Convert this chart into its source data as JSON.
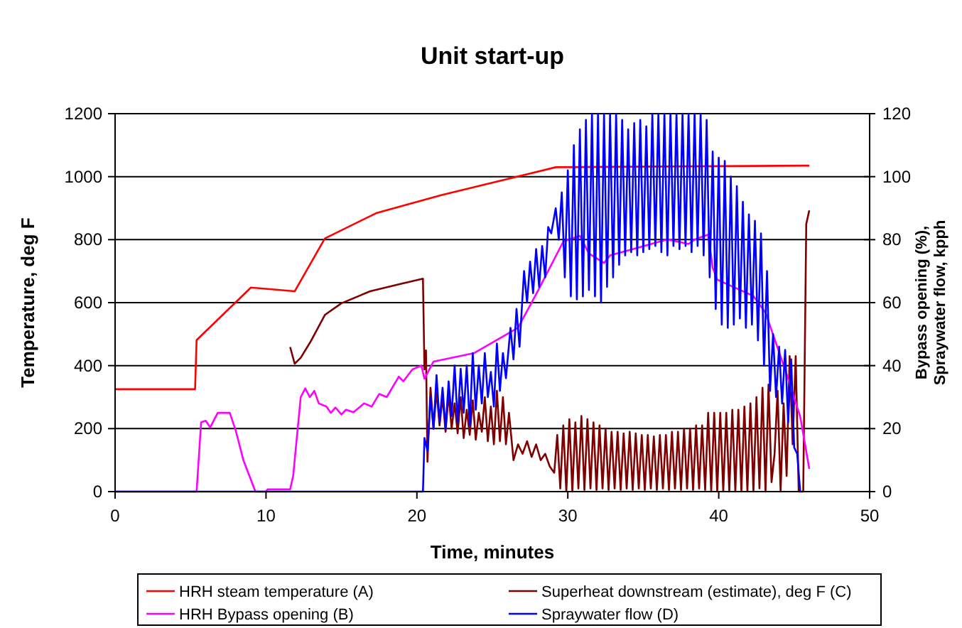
{
  "chart_data": {
    "type": "line",
    "title": "Unit start-up",
    "xlabel": "Time, minutes",
    "ylabel": "Temperature, deg F",
    "y2label": "Bypass opening (%),\nSpraywater flow, kpph",
    "xlim": [
      0,
      50
    ],
    "xticks": [
      0,
      10,
      20,
      30,
      40,
      50
    ],
    "ylim": [
      0,
      1200
    ],
    "yticks": [
      0,
      200,
      400,
      600,
      800,
      1000,
      1200
    ],
    "y2lim": [
      0,
      120
    ],
    "y2ticks": [
      0,
      20,
      40,
      60,
      80,
      100,
      120
    ],
    "grid": "y",
    "legend": "bottom",
    "marker": "none",
    "line_style": "solid",
    "series": [
      {
        "name": "HRH steam temperature (A)",
        "color": "#ff0000",
        "x": [
          0,
          5.3,
          5.4,
          9.0,
          11.9,
          13.9,
          17.3,
          21.6,
          29.2,
          46.0
        ],
        "values": [
          325,
          325,
          481,
          648,
          636,
          804,
          884,
          941,
          1030,
          1035
        ]
      },
      {
        "name": "Superheat downstream (estimate), deg F (C)",
        "color": "#800000",
        "x": [
          11.6,
          11.9,
          12.3,
          13.0,
          13.9,
          15.0,
          16.9,
          18.8,
          20.4,
          20.5,
          20.6,
          20.7,
          20.9,
          21.1,
          21.3,
          21.5,
          21.7,
          21.9,
          22.1,
          22.3,
          22.5,
          22.7,
          22.9,
          23.1,
          23.3,
          23.5,
          23.7,
          23.9,
          24.1,
          24.3,
          24.5,
          24.7,
          24.9,
          25.1,
          25.3,
          25.5,
          25.7,
          25.9,
          26.1,
          26.4,
          26.7,
          27.0,
          27.3,
          27.6,
          27.9,
          28.2,
          28.5,
          28.8,
          29.1,
          29.3,
          29.5,
          29.7,
          29.9,
          30.1,
          30.3,
          30.5,
          30.7,
          30.9,
          31.1,
          31.3,
          31.5,
          31.7,
          31.9,
          32.1,
          32.3,
          32.5,
          32.7,
          32.9,
          33.1,
          33.3,
          33.5,
          33.7,
          33.9,
          34.1,
          34.3,
          34.5,
          34.7,
          34.9,
          35.1,
          35.3,
          35.5,
          35.7,
          35.9,
          36.1,
          36.3,
          36.5,
          36.7,
          36.9,
          37.1,
          37.3,
          37.5,
          37.7,
          37.9,
          38.1,
          38.3,
          38.5,
          38.7,
          38.9,
          39.1,
          39.3,
          39.5,
          39.7,
          39.9,
          40.1,
          40.3,
          40.5,
          40.7,
          40.9,
          41.1,
          41.3,
          41.5,
          41.7,
          41.9,
          42.1,
          42.3,
          42.5,
          42.7,
          42.9,
          43.1,
          43.3,
          43.5,
          43.7,
          43.9,
          44.1,
          44.3,
          44.5,
          44.7,
          44.9,
          45.1,
          45.3,
          45.6,
          45.8,
          46.0
        ],
        "values": [
          459,
          406,
          425,
          480,
          561,
          598,
          636,
          658,
          676,
          388,
          448,
          95,
          330,
          200,
          320,
          210,
          300,
          190,
          310,
          200,
          280,
          185,
          300,
          170,
          260,
          180,
          290,
          165,
          250,
          190,
          300,
          160,
          270,
          150,
          320,
          160,
          300,
          150,
          250,
          100,
          150,
          120,
          160,
          110,
          150,
          100,
          120,
          80,
          60,
          180,
          10,
          210,
          0,
          230,
          0,
          220,
          10,
          240,
          5,
          230,
          10,
          220,
          5,
          210,
          10,
          200,
          5,
          190,
          10,
          190,
          5,
          185,
          10,
          190,
          5,
          185,
          10,
          180,
          5,
          180,
          10,
          175,
          5,
          180,
          10,
          180,
          5,
          190,
          10,
          190,
          5,
          200,
          10,
          200,
          5,
          210,
          10,
          210,
          5,
          250,
          0,
          250,
          0,
          250,
          0,
          250,
          0,
          260,
          0,
          260,
          0,
          270,
          0,
          280,
          0,
          300,
          10,
          330,
          0,
          340,
          30,
          120,
          320,
          0,
          280,
          50,
          430,
          150,
          430,
          0,
          0,
          850,
          893
        ]
      },
      {
        "name": "HRH Bypass opening (B)",
        "color": "#ff00ff",
        "axis": "y2",
        "x": [
          0,
          5.4,
          5.7,
          6.0,
          6.3,
          6.8,
          7.6,
          8.0,
          8.5,
          9.3,
          10.0,
          10.1,
          11.6,
          11.8,
          12.3,
          12.6,
          12.9,
          13.2,
          13.5,
          14.0,
          14.3,
          14.6,
          15.0,
          15.3,
          15.8,
          16.5,
          17.0,
          17.5,
          18.0,
          18.8,
          19.1,
          19.7,
          20.3,
          20.5,
          20.9,
          21.1,
          23.8,
          26.7,
          28.0,
          29.7,
          30.8,
          31.4,
          32.4,
          32.8,
          34.3,
          36.6,
          38.0,
          38.4,
          39.3,
          39.6,
          39.9,
          42.3,
          43.1,
          44.5,
          45.4,
          46.0
        ],
        "values": [
          0,
          0,
          22,
          22.5,
          20.4,
          25,
          25,
          19.3,
          10,
          0,
          0,
          0.7,
          0.7,
          5,
          30,
          32.8,
          30,
          32,
          28,
          27,
          25,
          26.7,
          24.5,
          26,
          25.2,
          28,
          27,
          31,
          30,
          36.5,
          35,
          38.8,
          40,
          35.8,
          39.5,
          41.3,
          44,
          52,
          63.6,
          79.4,
          81.2,
          75.6,
          72.6,
          75,
          77,
          80.1,
          78.6,
          80,
          81.6,
          71.1,
          67.3,
          62.1,
          56.8,
          37.3,
          23.8,
          7.2
        ]
      },
      {
        "name": "Spraywater flow (D)",
        "color": "#0000ff",
        "axis": "y2",
        "x": [
          0,
          20.4,
          20.5,
          20.7,
          20.9,
          21.1,
          21.3,
          21.5,
          21.7,
          21.9,
          22.1,
          22.3,
          22.5,
          22.7,
          22.9,
          23.1,
          23.3,
          23.5,
          23.7,
          23.9,
          24.1,
          24.3,
          24.5,
          24.7,
          24.9,
          25.1,
          25.3,
          25.5,
          25.7,
          25.9,
          26.2,
          26.4,
          26.6,
          26.8,
          27.1,
          27.3,
          27.5,
          27.7,
          27.9,
          28.1,
          28.3,
          28.5,
          28.7,
          28.9,
          29.2,
          29.4,
          29.6,
          29.8,
          30.0,
          30.2,
          30.4,
          30.6,
          30.8,
          31.0,
          31.2,
          31.4,
          31.6,
          31.8,
          32.0,
          32.2,
          32.4,
          32.6,
          32.8,
          33.0,
          33.2,
          33.4,
          33.6,
          33.8,
          34.0,
          34.2,
          34.4,
          34.6,
          34.8,
          35.0,
          35.2,
          35.4,
          35.6,
          35.8,
          36.0,
          36.2,
          36.4,
          36.6,
          36.8,
          37.0,
          37.2,
          37.4,
          37.6,
          37.8,
          38.0,
          38.2,
          38.4,
          38.6,
          38.8,
          39.0,
          39.2,
          39.4,
          39.6,
          39.8,
          40.0,
          40.2,
          40.4,
          40.6,
          40.8,
          41.0,
          41.2,
          41.4,
          41.6,
          41.8,
          42.0,
          42.2,
          42.4,
          42.6,
          42.8,
          43.0,
          43.2,
          43.4,
          43.6,
          43.8,
          44.0,
          44.2,
          44.4,
          44.6,
          44.8,
          45.0,
          45.2,
          45.4
        ],
        "values": [
          0,
          0,
          17,
          13,
          30,
          20,
          37,
          22,
          33,
          20,
          35,
          24,
          40,
          22,
          39,
          25,
          40,
          21,
          44,
          26,
          40,
          28,
          44,
          30,
          38,
          27,
          47,
          32,
          44,
          36,
          52,
          42,
          58,
          46,
          70,
          60,
          73,
          63,
          77,
          65,
          78,
          68,
          84,
          82,
          90,
          80,
          95,
          68,
          102,
          62,
          110,
          61,
          115,
          62,
          118,
          64,
          120,
          62,
          120,
          60,
          120,
          65,
          120,
          68,
          120,
          72,
          118,
          75,
          115,
          76,
          117,
          75,
          118,
          76,
          116,
          77,
          120,
          78,
          120,
          76,
          120,
          75,
          120,
          78,
          120,
          77,
          120,
          78,
          120,
          76,
          120,
          78,
          120,
          75,
          118,
          68,
          108,
          58,
          106,
          53,
          105,
          52,
          100,
          53,
          97,
          55,
          92,
          52,
          88,
          53,
          86,
          48,
          82,
          40,
          70,
          32,
          50,
          30,
          46,
          28,
          45,
          22,
          42,
          14,
          12,
          0
        ]
      }
    ]
  }
}
